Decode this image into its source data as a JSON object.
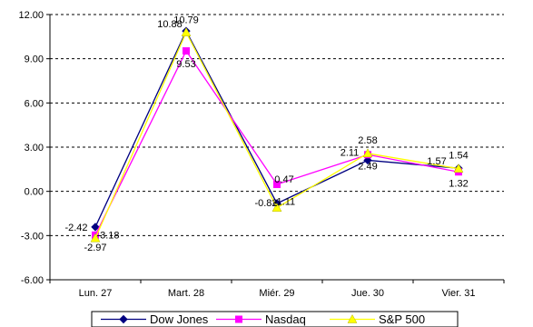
{
  "chart_data": {
    "type": "line",
    "categories": [
      "Lun. 27",
      "Mart. 28",
      "Miér. 29",
      "Jue. 30",
      "Vier. 31"
    ],
    "ylim": [
      -6.0,
      12.0
    ],
    "yticks": [
      "12.00",
      "9.00",
      "6.00",
      "3.00",
      "0.00",
      "-3.00",
      "-6.00"
    ],
    "ytick_values": [
      12,
      9,
      6,
      3,
      0,
      -3,
      -6
    ],
    "grid": "horizontal-dashed",
    "legend_position": "bottom",
    "series": [
      {
        "name": "Dow Jones",
        "color": "#000080",
        "marker": "diamond",
        "values": [
          -2.42,
          10.88,
          -0.82,
          2.11,
          1.57
        ],
        "labels": [
          "-2.42",
          "10.88",
          "-0.82",
          "2.11",
          "1.57"
        ]
      },
      {
        "name": "Nasdaq",
        "color": "#ff00ff",
        "marker": "square",
        "values": [
          -2.97,
          9.53,
          0.47,
          2.49,
          1.32
        ],
        "labels": [
          "-2.97",
          "9.53",
          "0.47",
          "2.49",
          "1.32"
        ]
      },
      {
        "name": "S&P 500",
        "color": "#ffff00",
        "marker": "triangle",
        "values": [
          -3.18,
          10.79,
          -1.11,
          2.58,
          1.54
        ],
        "labels": [
          "-3.18",
          "10.79",
          "-1.11",
          "2.58",
          "1.54"
        ]
      }
    ]
  }
}
